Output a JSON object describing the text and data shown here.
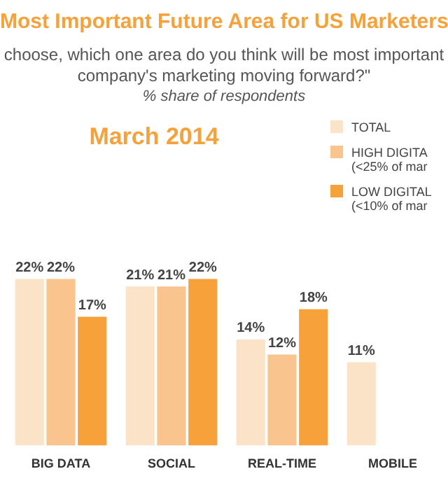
{
  "chart_data": {
    "type": "bar",
    "title": "Most Important Future Area for US Marketers",
    "subtitle": "choose, which one area do you think will be most important company's marketing moving forward?\"",
    "annotations": [
      "% share of respondents",
      "March 2014"
    ],
    "categories": [
      "BIG DATA",
      "SOCIAL",
      "REAL-TIME",
      "MOBILE"
    ],
    "series": [
      {
        "name": "TOTAL",
        "color": "#fbe3c8",
        "values": [
          22,
          21,
          14,
          11
        ],
        "value_labels": [
          "22%",
          "21%",
          "14%",
          "11%"
        ]
      },
      {
        "name": "HIGH DIGITA (<25% of mar",
        "color": "#f9c48d",
        "values": [
          22,
          21,
          12,
          null
        ],
        "value_labels": [
          "22%",
          "21%",
          "12%",
          null
        ]
      },
      {
        "name": "LOW DIGITAL (<10% of mar",
        "color": "#f7a13a",
        "values": [
          17,
          22,
          18,
          null
        ],
        "value_labels": [
          "17%",
          "22%",
          "18%",
          null
        ]
      }
    ],
    "legend": "top right",
    "grid": false,
    "tick_labels": "x"
  }
}
